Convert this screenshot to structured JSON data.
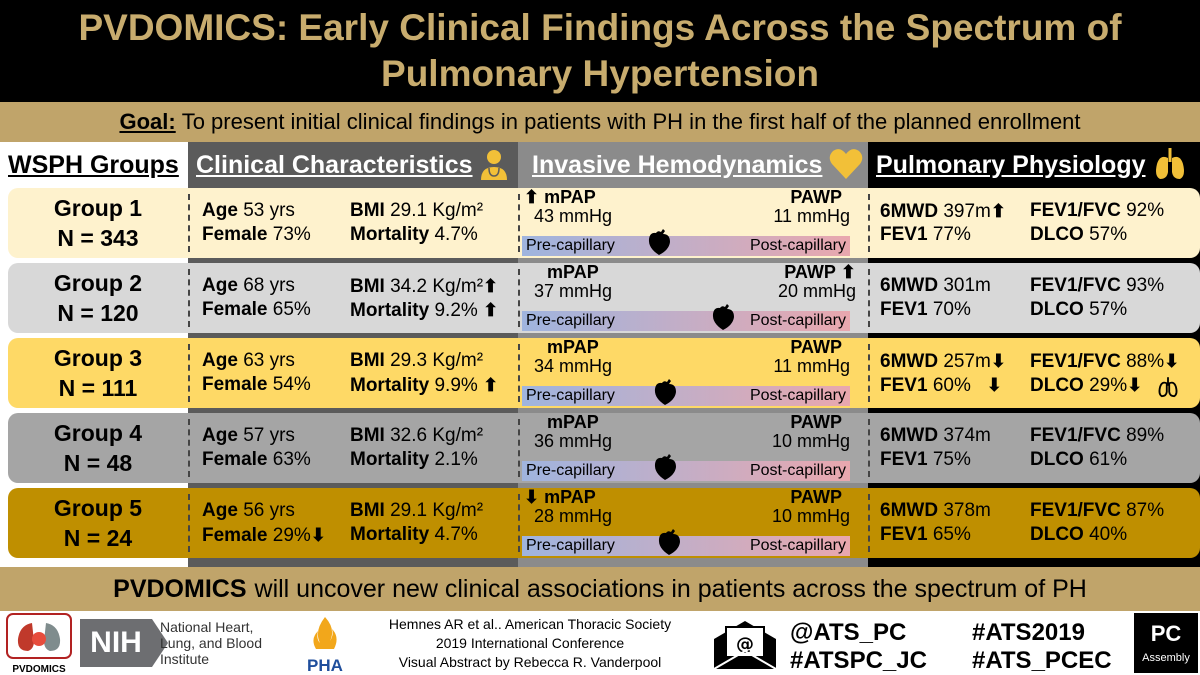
{
  "title": "PVDOMICS: Early Clinical Findings Across the Spectrum of Pulmonary Hypertension",
  "goal": {
    "label": "Goal:",
    "text": "To present initial clinical findings in patients with PH in the first half of the planned enrollment"
  },
  "headers": {
    "wsph": "WSPH Groups",
    "clinical": "Clinical Characteristics",
    "hemo": "Invasive Hemodynamics",
    "phys": "Pulmonary Physiology"
  },
  "labels": {
    "age": "Age",
    "female": "Female",
    "bmi": "BMI",
    "mortality": "Mortality",
    "mpap": "mPAP",
    "pawp": "PAWP",
    "pre": "Pre-capillary",
    "post": "Post-capillary",
    "sixmwd": "6MWD",
    "fev1fvc": "FEV1/FVC",
    "fev1": "FEV1",
    "dlco": "DLCO"
  },
  "groups": [
    {
      "name": "Group 1",
      "n": "N = 343",
      "age": "53 yrs",
      "female": "73%",
      "bmi": "29.1 Kg/m²",
      "mortality": "4.7%",
      "mpap": "43 mmHg",
      "pawp": "11 mmHg",
      "sixmwd": "397m",
      "fev1fvc": "92%",
      "fev1": "77%",
      "dlco": "57%"
    },
    {
      "name": "Group 2",
      "n": "N = 120",
      "age": "68 yrs",
      "female": "65%",
      "bmi": "34.2 Kg/m²",
      "mortality": "9.2%",
      "mpap": "37 mmHg",
      "pawp": "20 mmHg",
      "sixmwd": "301m",
      "fev1fvc": "93%",
      "fev1": "70%",
      "dlco": "57%"
    },
    {
      "name": "Group 3",
      "n": "N = 111",
      "age": "63 yrs",
      "female": "54%",
      "bmi": "29.3 Kg/m²",
      "mortality": "9.9%",
      "mpap": "34 mmHg",
      "pawp": "11 mmHg",
      "sixmwd": "257m",
      "fev1fvc": "88%",
      "fev1": "60%",
      "dlco": "29%"
    },
    {
      "name": "Group 4",
      "n": "N = 48",
      "age": "57 yrs",
      "female": "63%",
      "bmi": "32.6 Kg/m²",
      "mortality": "2.1%",
      "mpap": "36 mmHg",
      "pawp": "10 mmHg",
      "sixmwd": "374m",
      "fev1fvc": "89%",
      "fev1": "75%",
      "dlco": "61%"
    },
    {
      "name": "Group 5",
      "n": "N = 24",
      "age": "56 yrs",
      "female": "29%",
      "bmi": "29.1 Kg/m²",
      "mortality": "4.7%",
      "mpap": "28 mmHg",
      "pawp": "10 mmHg",
      "sixmwd": "378m",
      "fev1fvc": "87%",
      "fev1": "65%",
      "dlco": "40%"
    }
  ],
  "bottom": {
    "bold": "PVDOMICS",
    "text": "will uncover new clinical associations in patients across the spectrum of PH"
  },
  "footer": {
    "ref1": "Hemnes AR et al.. American Thoracic Society",
    "ref2": "2019 International Conference",
    "ref3": "Visual Abstract by Rebecca R. Vanderpool",
    "handle1": "@ATS_PC",
    "handle2": "#ATSPC_JC",
    "tag1": "#ATS2019",
    "tag2": "#ATS_PCEC",
    "pvdomics_logo": "PVDOMICS",
    "nih_logo": "NIH",
    "nhlbi": "National Heart, Lung, and Blood Institute",
    "pha": "PHA",
    "pc": "PC",
    "assembly": "Assembly"
  },
  "colors": {
    "gold": "#c0a46a",
    "title_gold": "#c8ac6e",
    "row1": "#fef2cd",
    "row2": "#d8d8d8",
    "row3": "#fed966",
    "row4": "#a5a5a5",
    "row5": "#bf8f00"
  }
}
